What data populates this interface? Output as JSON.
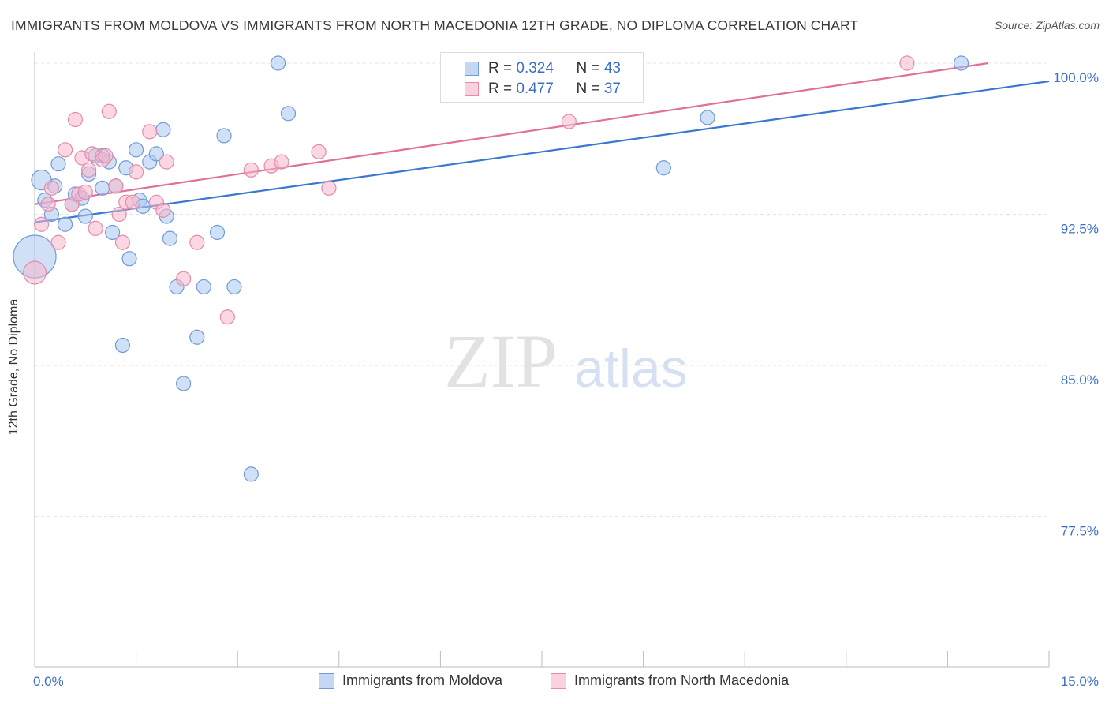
{
  "header": {
    "title": "IMMIGRANTS FROM MOLDOVA VS IMMIGRANTS FROM NORTH MACEDONIA 12TH GRADE, NO DIPLOMA CORRELATION CHART",
    "source": "Source: ZipAtlas.com"
  },
  "watermark": {
    "zip": "ZIP",
    "atlas": "atlas"
  },
  "legend": {
    "moldova": {
      "r_label": "R = ",
      "r_value": "0.324",
      "n_label": "N = ",
      "n_value": "43"
    },
    "macedonia": {
      "r_label": "R = ",
      "r_value": "0.477",
      "n_label": "N = ",
      "n_value": "37"
    }
  },
  "colors": {
    "moldova_fill": "#a9c7ef",
    "moldova_stroke": "#6f9bd8",
    "moldova_line": "#3a78d0",
    "macedonia_fill": "#f6b7cc",
    "macedonia_stroke": "#e58aa8",
    "macedonia_line": "#e0709a",
    "tick_label": "#3a6fc8",
    "grid": "#e3e3e3",
    "axis": "#bbbbbb"
  },
  "chart_data": {
    "type": "scatter",
    "title": "IMMIGRANTS FROM MOLDOVA VS IMMIGRANTS FROM NORTH MACEDONIA 12TH GRADE, NO DIPLOMA CORRELATION CHART",
    "xlabel": "",
    "ylabel": "12th Grade, No Diploma",
    "xlim": [
      0,
      15
    ],
    "ylim": [
      70.0,
      101.0
    ],
    "x_tick_labels": [
      {
        "value": 0,
        "label": "0.0%"
      },
      {
        "value": 15,
        "label": "15.0%"
      }
    ],
    "y_tick_labels": [
      {
        "value": 100.0,
        "label": "100.0%"
      },
      {
        "value": 92.5,
        "label": "92.5%"
      },
      {
        "value": 85.0,
        "label": "85.0%"
      },
      {
        "value": 77.5,
        "label": "77.5%"
      }
    ],
    "grid": true,
    "legend_position": "top-center",
    "series": [
      {
        "name": "Immigrants from Moldova",
        "r": 0.324,
        "n": 43,
        "trend": {
          "x": [
            0,
            15
          ],
          "y": [
            92.1,
            99.1
          ]
        },
        "points": [
          {
            "x": 0.0,
            "y": 90.4,
            "s": 3
          },
          {
            "x": 0.1,
            "y": 94.2,
            "s": 1.4
          },
          {
            "x": 0.15,
            "y": 93.2,
            "s": 1
          },
          {
            "x": 0.25,
            "y": 92.5,
            "s": 1
          },
          {
            "x": 0.3,
            "y": 93.9,
            "s": 1
          },
          {
            "x": 0.35,
            "y": 95.0,
            "s": 1
          },
          {
            "x": 0.45,
            "y": 92.0,
            "s": 1
          },
          {
            "x": 0.55,
            "y": 93.0,
            "s": 1
          },
          {
            "x": 0.6,
            "y": 93.5,
            "s": 1
          },
          {
            "x": 0.7,
            "y": 93.3,
            "s": 1
          },
          {
            "x": 0.75,
            "y": 92.4,
            "s": 1
          },
          {
            "x": 0.8,
            "y": 94.5,
            "s": 1
          },
          {
            "x": 0.9,
            "y": 95.4,
            "s": 1
          },
          {
            "x": 1.0,
            "y": 95.4,
            "s": 1
          },
          {
            "x": 1.0,
            "y": 93.8,
            "s": 1
          },
          {
            "x": 1.1,
            "y": 95.1,
            "s": 1
          },
          {
            "x": 1.15,
            "y": 91.6,
            "s": 1
          },
          {
            "x": 1.2,
            "y": 93.9,
            "s": 1
          },
          {
            "x": 1.3,
            "y": 86.0,
            "s": 1
          },
          {
            "x": 1.35,
            "y": 94.8,
            "s": 1
          },
          {
            "x": 1.4,
            "y": 90.3,
            "s": 1
          },
          {
            "x": 1.5,
            "y": 95.7,
            "s": 1
          },
          {
            "x": 1.55,
            "y": 93.2,
            "s": 1
          },
          {
            "x": 1.6,
            "y": 92.9,
            "s": 1
          },
          {
            "x": 1.7,
            "y": 95.1,
            "s": 1
          },
          {
            "x": 1.8,
            "y": 95.5,
            "s": 1
          },
          {
            "x": 1.9,
            "y": 96.7,
            "s": 1
          },
          {
            "x": 1.95,
            "y": 92.4,
            "s": 1
          },
          {
            "x": 2.0,
            "y": 91.3,
            "s": 1
          },
          {
            "x": 2.1,
            "y": 88.9,
            "s": 1
          },
          {
            "x": 2.2,
            "y": 84.1,
            "s": 1
          },
          {
            "x": 2.4,
            "y": 86.4,
            "s": 1
          },
          {
            "x": 2.5,
            "y": 88.9,
            "s": 1
          },
          {
            "x": 2.7,
            "y": 91.6,
            "s": 1
          },
          {
            "x": 2.8,
            "y": 96.4,
            "s": 1
          },
          {
            "x": 2.95,
            "y": 88.9,
            "s": 1
          },
          {
            "x": 3.2,
            "y": 79.6,
            "s": 1
          },
          {
            "x": 3.6,
            "y": 100.0,
            "s": 1
          },
          {
            "x": 3.75,
            "y": 97.5,
            "s": 1
          },
          {
            "x": 7.95,
            "y": 100.0,
            "s": 1
          },
          {
            "x": 9.3,
            "y": 94.8,
            "s": 1
          },
          {
            "x": 9.95,
            "y": 97.3,
            "s": 1
          },
          {
            "x": 13.7,
            "y": 100.0,
            "s": 1
          }
        ]
      },
      {
        "name": "Immigrants from North Macedonia",
        "r": 0.477,
        "n": 37,
        "trend": {
          "x": [
            0,
            14.1
          ],
          "y": [
            93.0,
            100.0
          ]
        },
        "points": [
          {
            "x": 0.0,
            "y": 89.6,
            "s": 1.6
          },
          {
            "x": 0.1,
            "y": 92.0,
            "s": 1
          },
          {
            "x": 0.2,
            "y": 93.0,
            "s": 1
          },
          {
            "x": 0.25,
            "y": 93.8,
            "s": 1
          },
          {
            "x": 0.35,
            "y": 91.1,
            "s": 1
          },
          {
            "x": 0.45,
            "y": 95.7,
            "s": 1
          },
          {
            "x": 0.55,
            "y": 93.0,
            "s": 1
          },
          {
            "x": 0.6,
            "y": 97.2,
            "s": 1
          },
          {
            "x": 0.65,
            "y": 93.5,
            "s": 1
          },
          {
            "x": 0.7,
            "y": 95.3,
            "s": 1
          },
          {
            "x": 0.75,
            "y": 93.6,
            "s": 1
          },
          {
            "x": 0.8,
            "y": 94.7,
            "s": 1
          },
          {
            "x": 0.85,
            "y": 95.5,
            "s": 1
          },
          {
            "x": 0.9,
            "y": 91.8,
            "s": 1
          },
          {
            "x": 1.0,
            "y": 95.2,
            "s": 1
          },
          {
            "x": 1.05,
            "y": 95.4,
            "s": 1
          },
          {
            "x": 1.1,
            "y": 97.6,
            "s": 1
          },
          {
            "x": 1.2,
            "y": 93.9,
            "s": 1
          },
          {
            "x": 1.25,
            "y": 92.5,
            "s": 1
          },
          {
            "x": 1.3,
            "y": 91.1,
            "s": 1
          },
          {
            "x": 1.35,
            "y": 93.1,
            "s": 1
          },
          {
            "x": 1.45,
            "y": 93.1,
            "s": 1
          },
          {
            "x": 1.5,
            "y": 94.6,
            "s": 1
          },
          {
            "x": 1.7,
            "y": 96.6,
            "s": 1
          },
          {
            "x": 1.8,
            "y": 93.1,
            "s": 1
          },
          {
            "x": 1.9,
            "y": 92.7,
            "s": 1
          },
          {
            "x": 1.95,
            "y": 95.1,
            "s": 1
          },
          {
            "x": 2.2,
            "y": 89.3,
            "s": 1
          },
          {
            "x": 2.4,
            "y": 91.1,
            "s": 1
          },
          {
            "x": 2.85,
            "y": 87.4,
            "s": 1
          },
          {
            "x": 3.2,
            "y": 94.7,
            "s": 1
          },
          {
            "x": 3.5,
            "y": 94.9,
            "s": 1
          },
          {
            "x": 3.65,
            "y": 95.1,
            "s": 1
          },
          {
            "x": 4.2,
            "y": 95.6,
            "s": 1
          },
          {
            "x": 4.35,
            "y": 93.8,
            "s": 1
          },
          {
            "x": 7.9,
            "y": 97.1,
            "s": 1
          },
          {
            "x": 12.9,
            "y": 100.0,
            "s": 1
          }
        ]
      }
    ]
  },
  "bottom_legend": {
    "moldova": "Immigrants from Moldova",
    "macedonia": "Immigrants from North Macedonia"
  }
}
